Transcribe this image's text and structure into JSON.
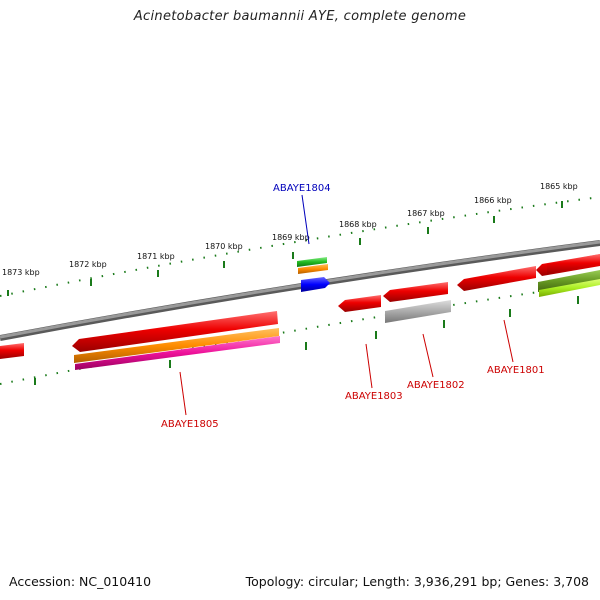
{
  "title": "Acinetobacter baumannii AYE, complete genome",
  "footer": {
    "accession": "Accession: NC_010410",
    "topology": "Topology: circular; Length: 3,936,291 bp; Genes: 3,708"
  },
  "ticks": [
    "1873 kbp",
    "1872 kbp",
    "1871 kbp",
    "1870 kbp",
    "1869 kbp",
    "1868 kbp",
    "1867 kbp",
    "1866 kbp",
    "1865 kbp"
  ],
  "gene_labels": {
    "g1804": "ABAYE1804",
    "g1805": "ABAYE1805",
    "g1803": "ABAYE1803",
    "g1802": "ABAYE1802",
    "g1801": "ABAYE1801"
  },
  "colors": {
    "backbone": "#808080",
    "tick": "#1a7a1a",
    "gene_red": "#ee0000",
    "gene_orange": "#ff8c00",
    "gene_magenta": "#ee1199",
    "gene_green": "#22bb22",
    "gene_blue": "#0000ff",
    "gene_gray": "#aaaaaa",
    "gene_olive": "#669922",
    "gene_lime": "#aaee22",
    "label_red": "#cc0000",
    "label_blue": "#0000bb"
  }
}
